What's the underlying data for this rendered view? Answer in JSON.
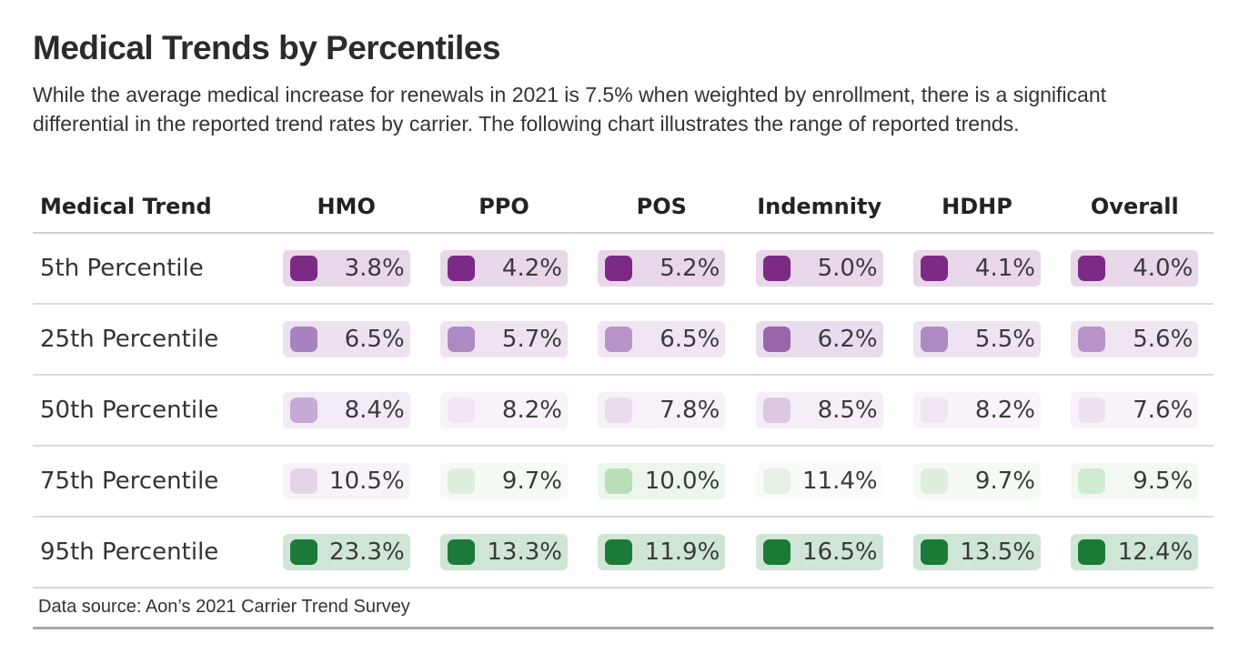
{
  "title": "Medical Trends by Percentiles",
  "subtitle": "While the average medical increase for renewals in 2021 is 7.5% when weighted by enrollment, there is a significant differential in the reported trend rates by carrier. The following chart illustrates the range of reported trends.",
  "source": "Data source: Aon’s 2021 Carrier Trend Survey",
  "chart_data": {
    "type": "table",
    "title": "Medical Trends by Percentiles",
    "row_header": "Medical Trend",
    "columns": [
      "HMO",
      "PPO",
      "POS",
      "Indemnity",
      "HDHP",
      "Overall"
    ],
    "rows": [
      {
        "label": "5th Percentile",
        "cells": [
          {
            "text": "3.8%",
            "value": 3.8,
            "color": "#7b2a86",
            "bg": "#e7d7e9"
          },
          {
            "text": "4.2%",
            "value": 4.2,
            "color": "#7b2a86",
            "bg": "#e7d7e9"
          },
          {
            "text": "5.2%",
            "value": 5.2,
            "color": "#7b2a86",
            "bg": "#e7d7e9"
          },
          {
            "text": "5.0%",
            "value": 5.0,
            "color": "#7b2a86",
            "bg": "#e7d7e9"
          },
          {
            "text": "4.1%",
            "value": 4.1,
            "color": "#7b2a86",
            "bg": "#e7d7e9"
          },
          {
            "text": "4.0%",
            "value": 4.0,
            "color": "#7b2a86",
            "bg": "#e7d7e9"
          }
        ]
      },
      {
        "label": "25th Percentile",
        "cells": [
          {
            "text": "6.5%",
            "value": 6.5,
            "color": "#a882c0",
            "bg": "#ece2f0"
          },
          {
            "text": "5.7%",
            "value": 5.7,
            "color": "#ae8ac4",
            "bg": "#ede3f1"
          },
          {
            "text": "6.5%",
            "value": 6.5,
            "color": "#b693c9",
            "bg": "#efe6f2"
          },
          {
            "text": "6.2%",
            "value": 6.2,
            "color": "#9966ab",
            "bg": "#e9dcee"
          },
          {
            "text": "5.5%",
            "value": 5.5,
            "color": "#ae8ac4",
            "bg": "#ede3f1"
          },
          {
            "text": "5.6%",
            "value": 5.6,
            "color": "#b693c9",
            "bg": "#efe6f2"
          }
        ]
      },
      {
        "label": "50th Percentile",
        "cells": [
          {
            "text": "8.4%",
            "value": 8.4,
            "color": "#c6a9d4",
            "bg": "#f2eaf5"
          },
          {
            "text": "8.2%",
            "value": 8.2,
            "color": "#efe6f1",
            "bg": "#f8f3f9"
          },
          {
            "text": "7.8%",
            "value": 7.8,
            "color": "#e9ddec",
            "bg": "#f7f1f8"
          },
          {
            "text": "8.5%",
            "value": 8.5,
            "color": "#ddc8e3",
            "bg": "#f5eef7"
          },
          {
            "text": "8.2%",
            "value": 8.2,
            "color": "#efe6f1",
            "bg": "#f8f3f9"
          },
          {
            "text": "7.6%",
            "value": 7.6,
            "color": "#ede3f0",
            "bg": "#f8f3f9"
          }
        ]
      },
      {
        "label": "75th Percentile",
        "cells": [
          {
            "text": "10.5%",
            "value": 10.5,
            "color": "#e6d3e8",
            "bg": "#f8f3f9"
          },
          {
            "text": "9.7%",
            "value": 9.7,
            "color": "#ddefdc",
            "bg": "#f6faf5"
          },
          {
            "text": "10.0%",
            "value": 10.0,
            "color": "#b8dfb6",
            "bg": "#edf6ec"
          },
          {
            "text": "11.4%",
            "value": 11.4,
            "color": "#e6f0e5",
            "bg": "#f8fbf7"
          },
          {
            "text": "9.7%",
            "value": 9.7,
            "color": "#ddefdc",
            "bg": "#f6faf5"
          },
          {
            "text": "9.5%",
            "value": 9.5,
            "color": "#d1ebd0",
            "bg": "#f3f9f2"
          }
        ]
      },
      {
        "label": "95th Percentile",
        "cells": [
          {
            "text": "23.3%",
            "value": 23.3,
            "color": "#1b7a37",
            "bg": "#cfe5d5"
          },
          {
            "text": "13.3%",
            "value": 13.3,
            "color": "#1b7a37",
            "bg": "#cfe5d5"
          },
          {
            "text": "11.9%",
            "value": 11.9,
            "color": "#1b7a37",
            "bg": "#cfe5d5"
          },
          {
            "text": "16.5%",
            "value": 16.5,
            "color": "#1b7a37",
            "bg": "#cfe5d5"
          },
          {
            "text": "13.5%",
            "value": 13.5,
            "color": "#1b7a37",
            "bg": "#cfe5d5"
          },
          {
            "text": "12.4%",
            "value": 12.4,
            "color": "#1b7a37",
            "bg": "#cfe5d5"
          }
        ]
      }
    ]
  }
}
